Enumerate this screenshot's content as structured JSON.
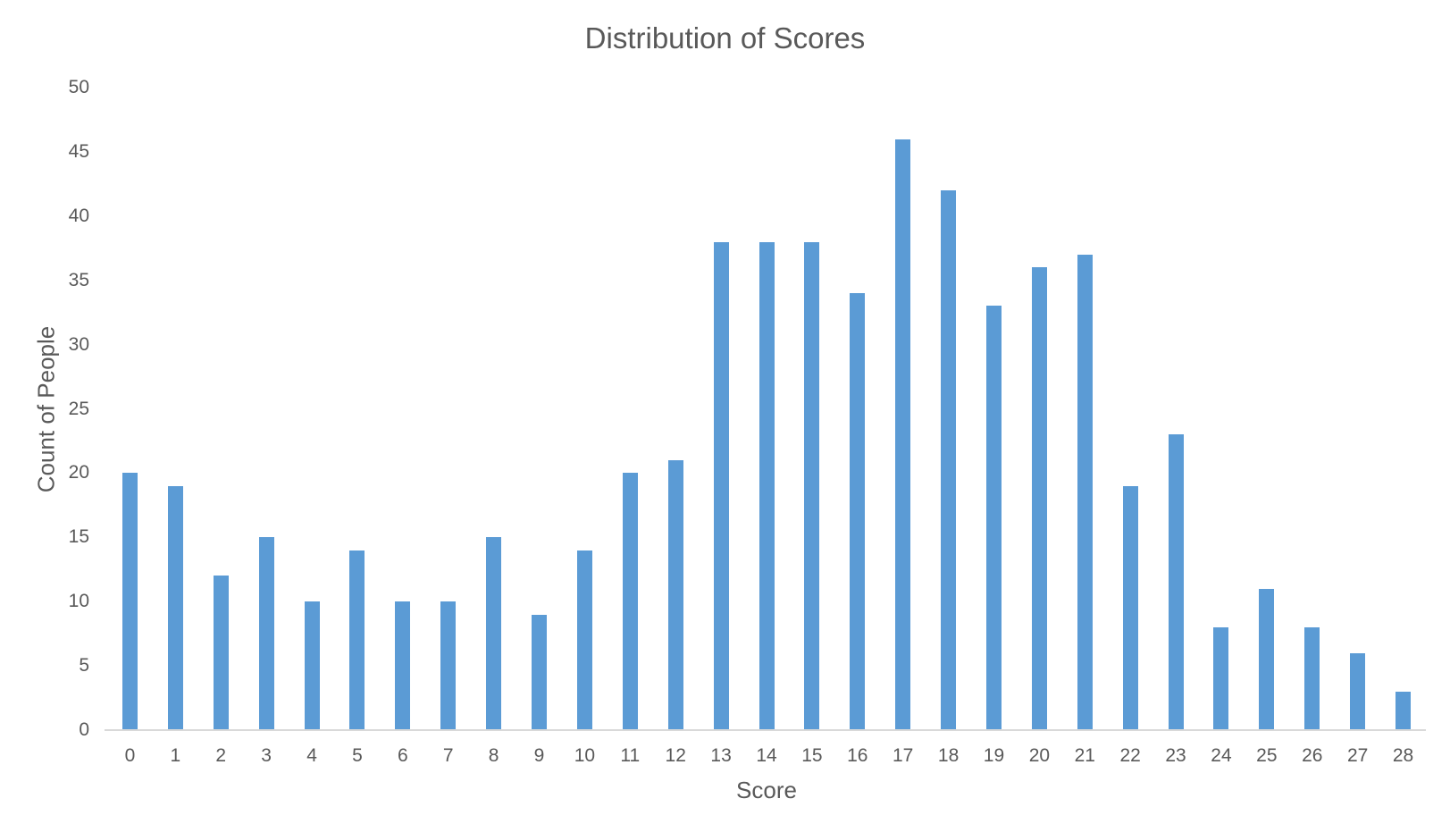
{
  "chart_data": {
    "type": "bar",
    "title": "Distribution of Scores",
    "xlabel": "Score",
    "ylabel": "Count of People",
    "categories": [
      "0",
      "1",
      "2",
      "3",
      "4",
      "5",
      "6",
      "7",
      "8",
      "9",
      "10",
      "11",
      "12",
      "13",
      "14",
      "15",
      "16",
      "17",
      "18",
      "19",
      "20",
      "21",
      "22",
      "23",
      "24",
      "25",
      "26",
      "27",
      "28"
    ],
    "values": [
      20,
      19,
      12,
      15,
      10,
      14,
      10,
      10,
      15,
      9,
      14,
      20,
      21,
      38,
      38,
      38,
      34,
      46,
      42,
      33,
      36,
      37,
      19,
      23,
      8,
      11,
      8,
      6,
      3
    ],
    "ylim": [
      0,
      50
    ],
    "yticks": [
      0,
      5,
      10,
      15,
      20,
      25,
      30,
      35,
      40,
      45,
      50
    ],
    "grid": false,
    "legend": "none",
    "bar_color": "#5B9BD5",
    "axis_line_color": "#D9D9D9",
    "text_color": "#595959"
  }
}
